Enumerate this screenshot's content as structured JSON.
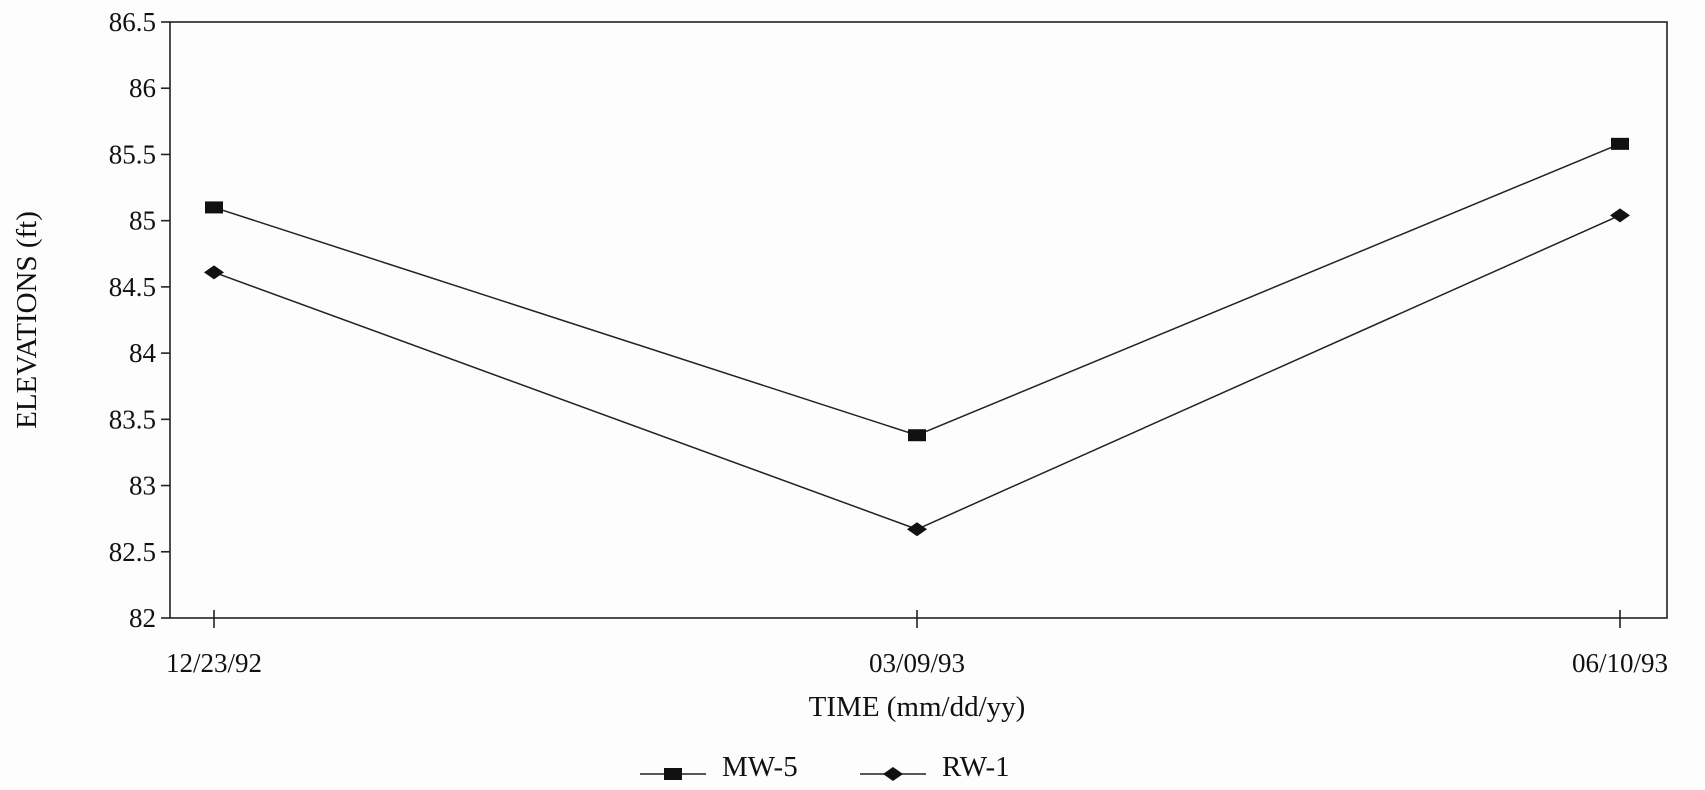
{
  "chart_data": {
    "type": "line",
    "title": "",
    "xlabel": "TIME (mm/dd/yy)",
    "ylabel": "ELEVATIONS (ft)",
    "categories": [
      "12/23/92",
      "03/09/93",
      "06/10/93"
    ],
    "ylim": [
      82,
      86.5
    ],
    "yticks": [
      "82",
      "82.5",
      "83",
      "83.5",
      "84",
      "84.5",
      "85",
      "85.5",
      "86",
      "86.5"
    ],
    "grid": false,
    "legend_position": "bottom-center",
    "series": [
      {
        "name": "MW-5",
        "marker": "square",
        "values": [
          85.1,
          83.38,
          85.58
        ]
      },
      {
        "name": "RW-1",
        "marker": "diamond",
        "values": [
          84.61,
          82.67,
          85.04
        ]
      }
    ]
  }
}
